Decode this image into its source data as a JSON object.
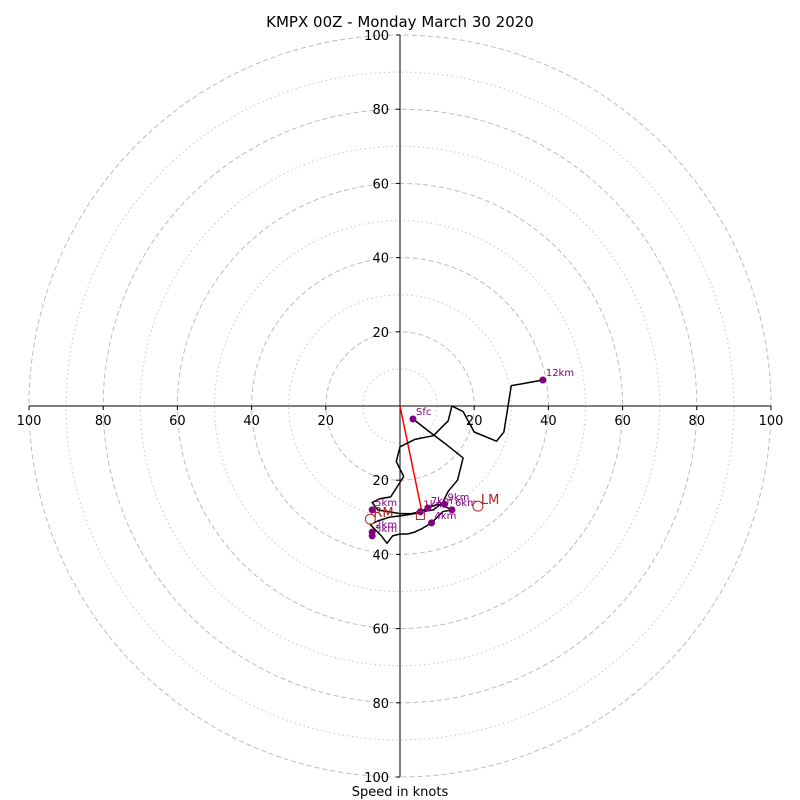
{
  "chart_data": {
    "type": "hodograph",
    "title": "KMPX 00Z - Monday March 30 2020",
    "xlabel": "Speed in knots",
    "range": [
      -100,
      100
    ],
    "ring_major": [
      20,
      40,
      60,
      80,
      100
    ],
    "ring_minor": [
      10,
      30,
      50,
      70,
      90
    ],
    "x_ticks": [
      "100",
      "80",
      "60",
      "40",
      "20",
      "20",
      "40",
      "60",
      "80",
      "100"
    ],
    "y_ticks": [
      "100",
      "80",
      "60",
      "40",
      "20",
      "20",
      "40",
      "60",
      "80",
      "100"
    ],
    "line_color": "#000000",
    "point_color": "#800080",
    "motion_color": "#b22222",
    "shear_color": "#ff0000",
    "trace": [
      {
        "u": 3.5,
        "v": -3.5
      },
      {
        "u": 8,
        "v": -7
      },
      {
        "u": 12,
        "v": -10
      },
      {
        "u": 17,
        "v": -14
      },
      {
        "u": 15.5,
        "v": -20
      },
      {
        "u": 13,
        "v": -23
      },
      {
        "u": 11.5,
        "v": -26
      },
      {
        "u": 9,
        "v": -28
      },
      {
        "u": 6,
        "v": -28.5
      },
      {
        "u": 4,
        "v": -29
      },
      {
        "u": 1,
        "v": -29.5
      },
      {
        "u": -3,
        "v": -30
      },
      {
        "u": -6,
        "v": -31
      },
      {
        "u": -8,
        "v": -32
      },
      {
        "u": -5,
        "v": -35
      },
      {
        "u": -3.5,
        "v": -37
      },
      {
        "u": -2,
        "v": -35
      },
      {
        "u": 0,
        "v": -34.5
      },
      {
        "u": 2,
        "v": -34.5
      },
      {
        "u": 4,
        "v": -34
      },
      {
        "u": 6,
        "v": -33
      },
      {
        "u": 8.5,
        "v": -31.5
      },
      {
        "u": 10,
        "v": -30
      },
      {
        "u": 11.5,
        "v": -28.5
      },
      {
        "u": 14,
        "v": -28
      },
      {
        "u": 12,
        "v": -27
      },
      {
        "u": 10,
        "v": -26.5
      },
      {
        "u": 7.5,
        "v": -27.5
      },
      {
        "u": 5.5,
        "v": -28.5
      },
      {
        "u": 3,
        "v": -29
      },
      {
        "u": 0,
        "v": -29
      },
      {
        "u": -3,
        "v": -28.5
      },
      {
        "u": -6,
        "v": -28
      },
      {
        "u": -7.5,
        "v": -26
      },
      {
        "u": -5.5,
        "v": -25
      },
      {
        "u": -2.5,
        "v": -24.5
      },
      {
        "u": 1,
        "v": -19
      },
      {
        "u": 0,
        "v": -17
      },
      {
        "u": -1,
        "v": -15
      },
      {
        "u": -0.5,
        "v": -13
      },
      {
        "u": 0,
        "v": -11
      },
      {
        "u": 4,
        "v": -9
      },
      {
        "u": 9,
        "v": -8
      },
      {
        "u": 13,
        "v": -4
      },
      {
        "u": 14,
        "v": 0
      },
      {
        "u": 17,
        "v": -1.5
      },
      {
        "u": 20,
        "v": -7
      },
      {
        "u": 26,
        "v": -9.5
      },
      {
        "u": 28,
        "v": -7
      },
      {
        "u": 30,
        "v": 5.5
      },
      {
        "u": 33,
        "v": 6
      },
      {
        "u": 38.5,
        "v": 7
      }
    ],
    "height_points": [
      {
        "label": "Sfc",
        "u": 3.5,
        "v": -3.5
      },
      {
        "label": "1km",
        "u": 5.5,
        "v": -28.5
      },
      {
        "label": "2km",
        "u": -7.5,
        "v": -34
      },
      {
        "label": "3km",
        "u": -7.5,
        "v": -35
      },
      {
        "label": "4km",
        "u": 8.5,
        "v": -31.5
      },
      {
        "label": "5km",
        "u": -7.5,
        "v": -28
      },
      {
        "label": "6km",
        "u": 14,
        "v": -28
      },
      {
        "label": "7km",
        "u": 7.5,
        "v": -27.5
      },
      {
        "label": "9km",
        "u": 12,
        "v": -26.5
      },
      {
        "label": "12km",
        "u": 38.5,
        "v": 7
      }
    ],
    "storm_motion": [
      {
        "label": "LM",
        "u": 21,
        "v": -27
      },
      {
        "label": "RM",
        "u": -8,
        "v": -30.5
      }
    ],
    "shear_vector": {
      "from": {
        "u": 0,
        "v": 0
      },
      "to": {
        "u": 6,
        "v": -29
      }
    },
    "mean_wind_marker": {
      "u": 5.5,
      "v": -29.5
    }
  }
}
